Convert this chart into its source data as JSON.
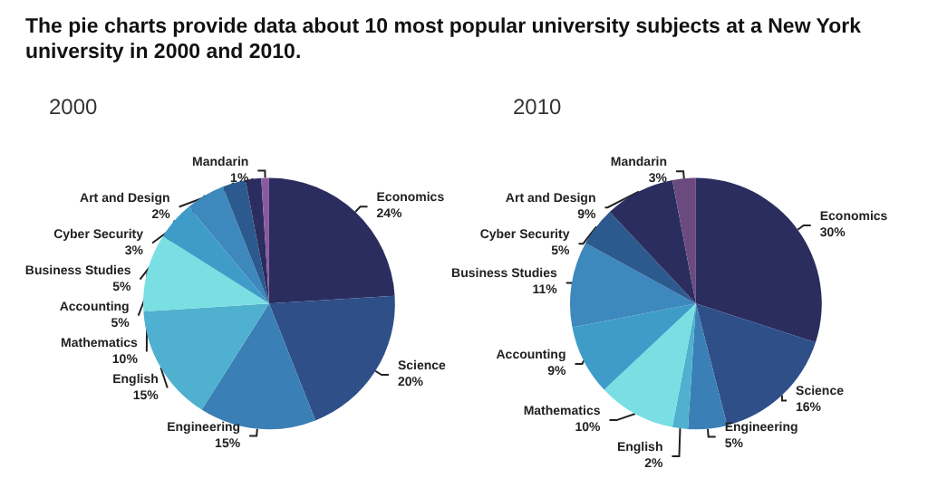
{
  "chart_data": [
    {
      "type": "other",
      "title": "The pie charts provide data about 10 most popular university subjects at a New York university in 2000 and 2010."
    },
    {
      "type": "pie",
      "title": "2000",
      "categories": [
        "Economics",
        "Science",
        "Engineering",
        "English",
        "Mathematics",
        "Accounting",
        "Business Studies",
        "Cyber Security",
        "Art and Design",
        "Mandarin"
      ],
      "values": [
        24,
        20,
        15,
        15,
        10,
        5,
        5,
        3,
        2,
        1
      ],
      "value_labels": [
        "24%",
        "20%",
        "15%",
        "15%",
        "10%",
        "5%",
        "5%",
        "3%",
        "2%",
        "1%"
      ],
      "colors": [
        "#2a2d5e",
        "#2e4f88",
        "#3a7fb5",
        "#4fb0cf",
        "#7adfe3",
        "#3f9cc8",
        "#3d88bd",
        "#2d5a8e",
        "#2a2d5e",
        "#8a5aa0"
      ]
    },
    {
      "type": "pie",
      "title": "2010",
      "categories": [
        "Economics",
        "Science",
        "Engineering",
        "English",
        "Mathematics",
        "Accounting",
        "Business Studies",
        "Cyber Security",
        "Art and Design",
        "Mandarin"
      ],
      "values": [
        30,
        16,
        5,
        2,
        10,
        9,
        11,
        5,
        9,
        3
      ],
      "value_labels": [
        "30%",
        "16%",
        "5%",
        "2%",
        "10%",
        "9%",
        "11%",
        "5%",
        "9%",
        "3%"
      ],
      "colors": [
        "#2a2d5e",
        "#2e4f88",
        "#3a7fb5",
        "#4fb0cf",
        "#7adfe3",
        "#3f9cc8",
        "#3d88bd",
        "#2d5a8e",
        "#2a2d5e",
        "#6b4a80"
      ]
    }
  ]
}
